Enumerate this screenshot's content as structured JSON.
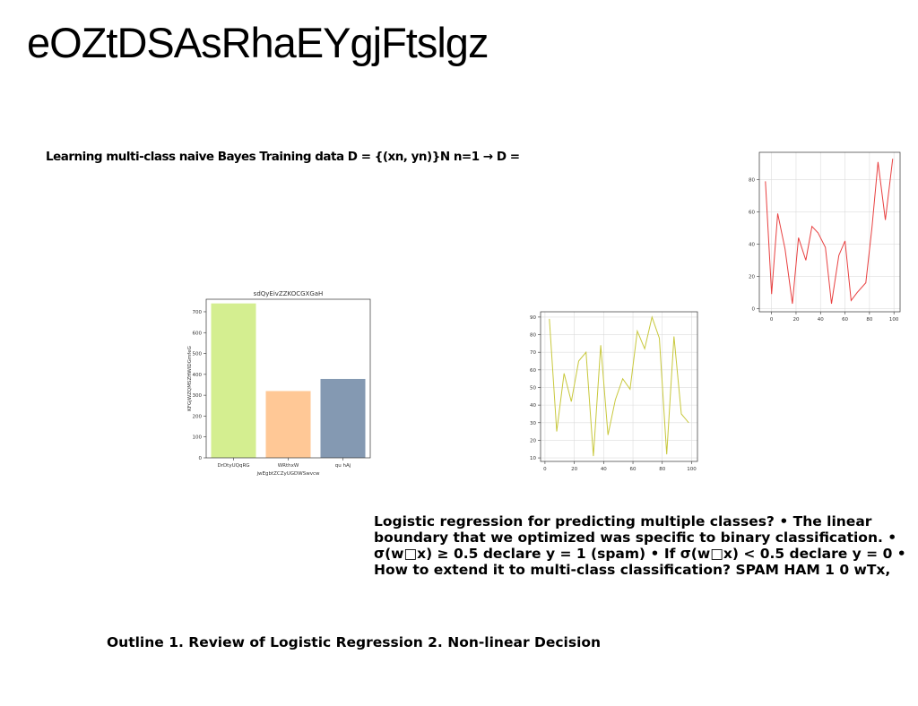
{
  "slide": {
    "title": "eOZtDSAsRhaEYgjFtslgz",
    "text_bayes": "Learning multi-class naive Bayes Training data D = {(xn, yn)}N n=1 → D =",
    "text_logistic": "Logistic regression for predicting multiple classes? • The linear boundary that we optimized was specific to binary classification. • σ(w□x) ≥ 0.5 declare y = 1 (spam) • If σ(w□x) < 0.5 declare y = 0 • How to extend it to multi-class classification? SPAM HAM 1 0 wTx,",
    "text_outline": "Outline 1. Review of Logistic Regression 2. Non-linear Decision"
  },
  "chart_data": [
    {
      "type": "bar",
      "title": "sdQyEivZZKOCGXGaH",
      "xlabel": "jwEgbtZCZyUGDWSwvcw",
      "ylabel": "KFGjWZQMSZHWIDGmfeG",
      "categories": [
        "DrDtyUQqRG",
        "WRthxW",
        "qu hAj"
      ],
      "values": [
        740,
        320,
        378
      ],
      "colors": [
        "#d4ee90",
        "#ffc896",
        "#8499b2"
      ],
      "ylim": [
        0,
        760
      ],
      "yticks": [
        0,
        100,
        200,
        300,
        400,
        500,
        600,
        700
      ],
      "grid": false
    },
    {
      "type": "line",
      "color": "#c8c83c",
      "x": [
        3,
        8,
        13,
        18,
        23,
        28,
        33,
        38,
        43,
        48,
        53,
        58,
        63,
        68,
        73,
        78,
        83,
        88,
        93,
        98
      ],
      "y": [
        89,
        25,
        58,
        42,
        65,
        70,
        11,
        74,
        23,
        43,
        55,
        49,
        82,
        72,
        90,
        78,
        12,
        79,
        35,
        30
      ],
      "xlim": [
        -3,
        104
      ],
      "ylim": [
        8,
        93
      ],
      "xticks": [
        0,
        20,
        40,
        60,
        80,
        100
      ],
      "yticks": [
        10,
        20,
        30,
        40,
        50,
        60,
        70,
        80,
        90
      ],
      "grid": true
    },
    {
      "type": "line",
      "color": "#e84040",
      "x": [
        -5,
        0,
        5,
        11,
        17,
        22,
        28,
        33,
        38,
        44,
        49,
        55,
        60,
        65,
        70,
        77,
        82,
        87,
        93,
        99
      ],
      "y": [
        79,
        9,
        59,
        37,
        3,
        44,
        30,
        51,
        47,
        38,
        3,
        33,
        42,
        5,
        10,
        16,
        50,
        91,
        55,
        93
      ],
      "xlim": [
        -10,
        105
      ],
      "ylim": [
        -2,
        97
      ],
      "xticks": [
        0,
        20,
        40,
        60,
        80,
        100
      ],
      "yticks": [
        0,
        20,
        40,
        60,
        80
      ],
      "grid": true
    }
  ]
}
